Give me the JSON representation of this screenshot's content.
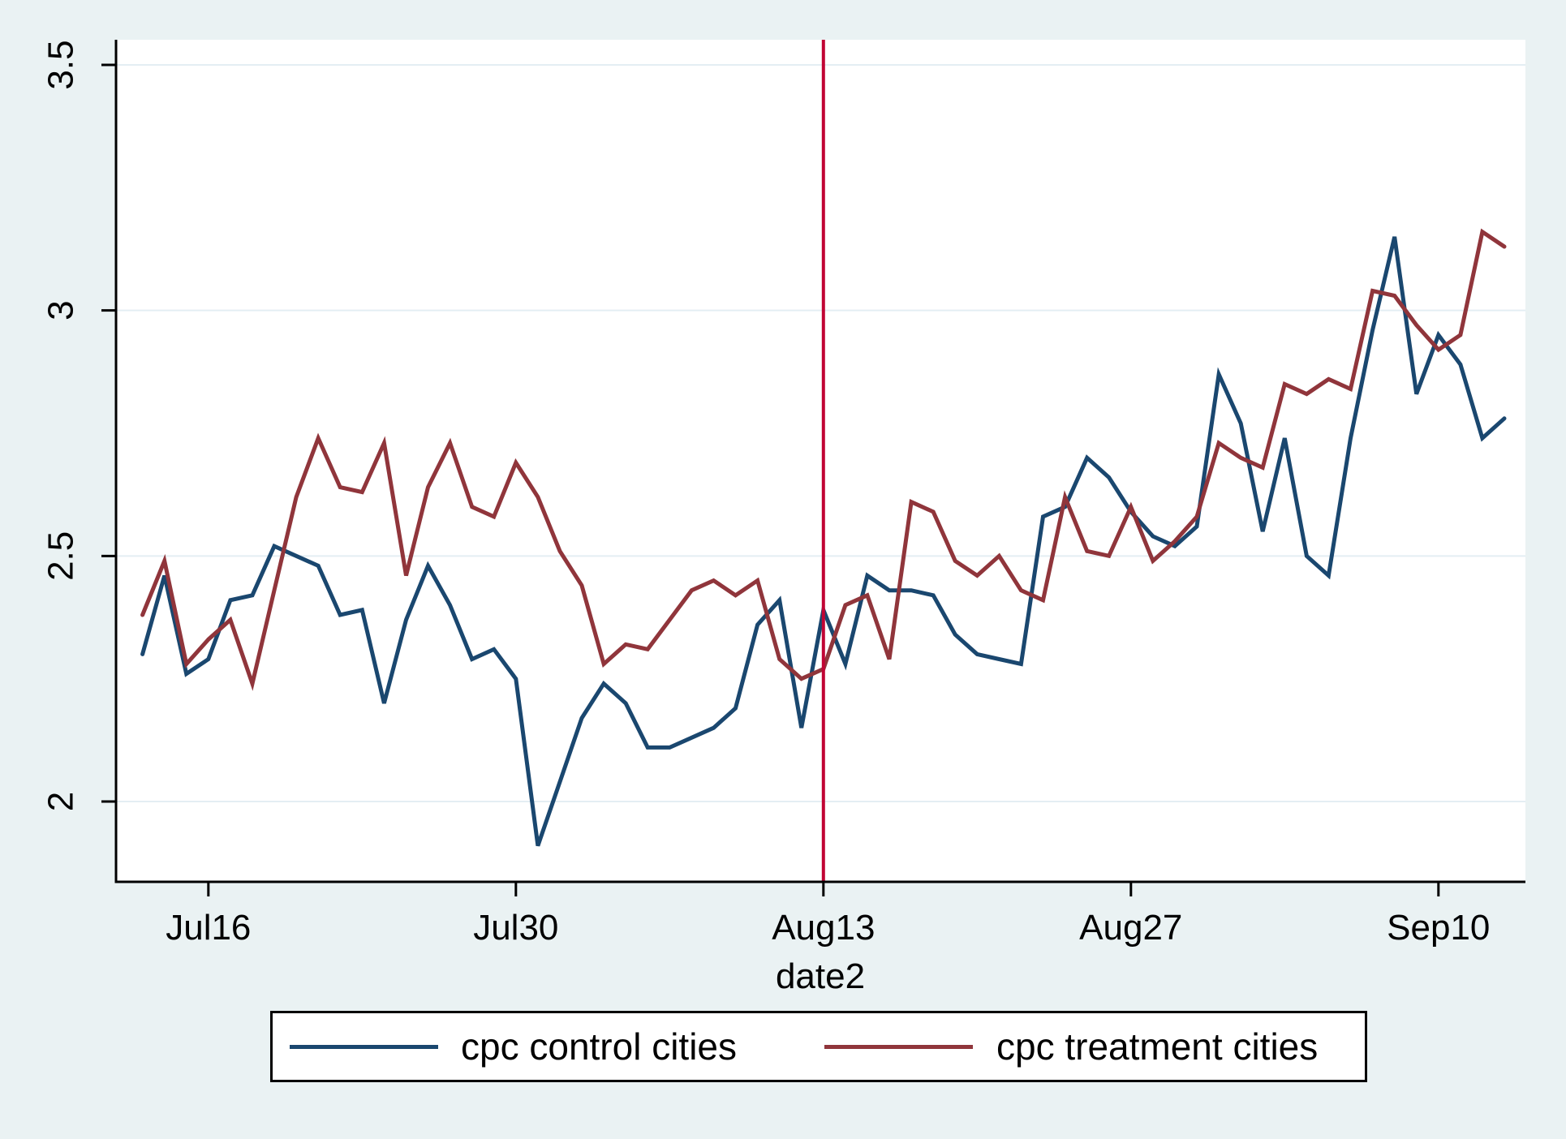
{
  "chart_data": {
    "type": "line",
    "title": "",
    "xlabel": "date2",
    "ylabel": "",
    "grid": true,
    "legend_position": "bottom",
    "ylim": [
      1.836,
      3.551
    ],
    "xlim_day_units": [
      -1.2,
      63.0
    ],
    "y_ticks": [
      2,
      2.5,
      3,
      3.5
    ],
    "y_tick_labels": [
      "2",
      "2.5",
      "3",
      "3.5"
    ],
    "x_tick_labels": [
      "Jul16",
      "Jul30",
      "Aug13",
      "Aug27",
      "Sep10"
    ],
    "x_tick_day_indices": [
      3,
      17,
      31,
      45,
      59
    ],
    "x": [
      "Jul13",
      "Jul14",
      "Jul15",
      "Jul16",
      "Jul17",
      "Jul18",
      "Jul19",
      "Jul20",
      "Jul21",
      "Jul22",
      "Jul23",
      "Jul24",
      "Jul25",
      "Jul26",
      "Jul27",
      "Jul28",
      "Jul29",
      "Jul30",
      "Jul31",
      "Aug1",
      "Aug2",
      "Aug3",
      "Aug4",
      "Aug5",
      "Aug6",
      "Aug7",
      "Aug8",
      "Aug9",
      "Aug10",
      "Aug11",
      "Aug12",
      "Aug13",
      "Aug14",
      "Aug15",
      "Aug16",
      "Aug17",
      "Aug18",
      "Aug19",
      "Aug20",
      "Aug21",
      "Aug22",
      "Aug23",
      "Aug24",
      "Aug25",
      "Aug26",
      "Aug27",
      "Aug28",
      "Aug29",
      "Aug30",
      "Aug31",
      "Sep1",
      "Sep2",
      "Sep3",
      "Sep4",
      "Sep5",
      "Sep6",
      "Sep7",
      "Sep8",
      "Sep9",
      "Sep10",
      "Sep11",
      "Sep12",
      "Sep13"
    ],
    "series": [
      {
        "name": "cpc control cities",
        "color": "#1A476F",
        "values": [
          2.3,
          2.46,
          2.26,
          2.29,
          2.41,
          2.42,
          2.52,
          2.5,
          2.48,
          2.38,
          2.39,
          2.2,
          2.37,
          2.48,
          2.4,
          2.29,
          2.31,
          2.25,
          1.91,
          2.04,
          2.17,
          2.24,
          2.2,
          2.11,
          2.11,
          2.13,
          2.15,
          2.19,
          2.36,
          2.41,
          2.15,
          2.39,
          2.28,
          2.46,
          2.43,
          2.43,
          2.42,
          2.34,
          2.3,
          2.29,
          2.28,
          2.58,
          2.6,
          2.7,
          2.66,
          2.59,
          2.54,
          2.52,
          2.56,
          2.87,
          2.77,
          2.55,
          2.74,
          2.5,
          2.46,
          2.74,
          2.96,
          3.15,
          2.83,
          2.95,
          2.89,
          2.74,
          2.78
        ]
      },
      {
        "name": "cpc treatment cities",
        "color": "#90353B",
        "values": [
          2.38,
          2.49,
          2.28,
          2.33,
          2.37,
          2.24,
          2.43,
          2.62,
          2.74,
          2.64,
          2.63,
          2.73,
          2.46,
          2.64,
          2.73,
          2.6,
          2.58,
          2.69,
          2.62,
          2.51,
          2.44,
          2.28,
          2.32,
          2.31,
          2.37,
          2.43,
          2.45,
          2.42,
          2.45,
          2.29,
          2.25,
          2.27,
          2.4,
          2.42,
          2.29,
          2.61,
          2.59,
          2.49,
          2.46,
          2.5,
          2.43,
          2.41,
          2.62,
          2.51,
          2.5,
          2.6,
          2.49,
          2.53,
          2.58,
          2.73,
          2.7,
          2.68,
          2.85,
          2.83,
          2.86,
          2.84,
          3.04,
          3.03,
          2.97,
          2.92,
          2.95,
          3.16,
          3.13
        ]
      }
    ],
    "vline": {
      "at_x_label": "Aug13",
      "day_index": 31,
      "color": "#C10534"
    }
  },
  "legend": {
    "entries": [
      {
        "label": "cpc control cities",
        "color": "#1A476F"
      },
      {
        "label": "cpc treatment cities",
        "color": "#90353B"
      }
    ]
  },
  "colors": {
    "background": "#EAF2F3",
    "plot_background": "#FFFFFF",
    "gridline": "#E4EEF3",
    "axis": "#000000",
    "text": "#000000"
  }
}
